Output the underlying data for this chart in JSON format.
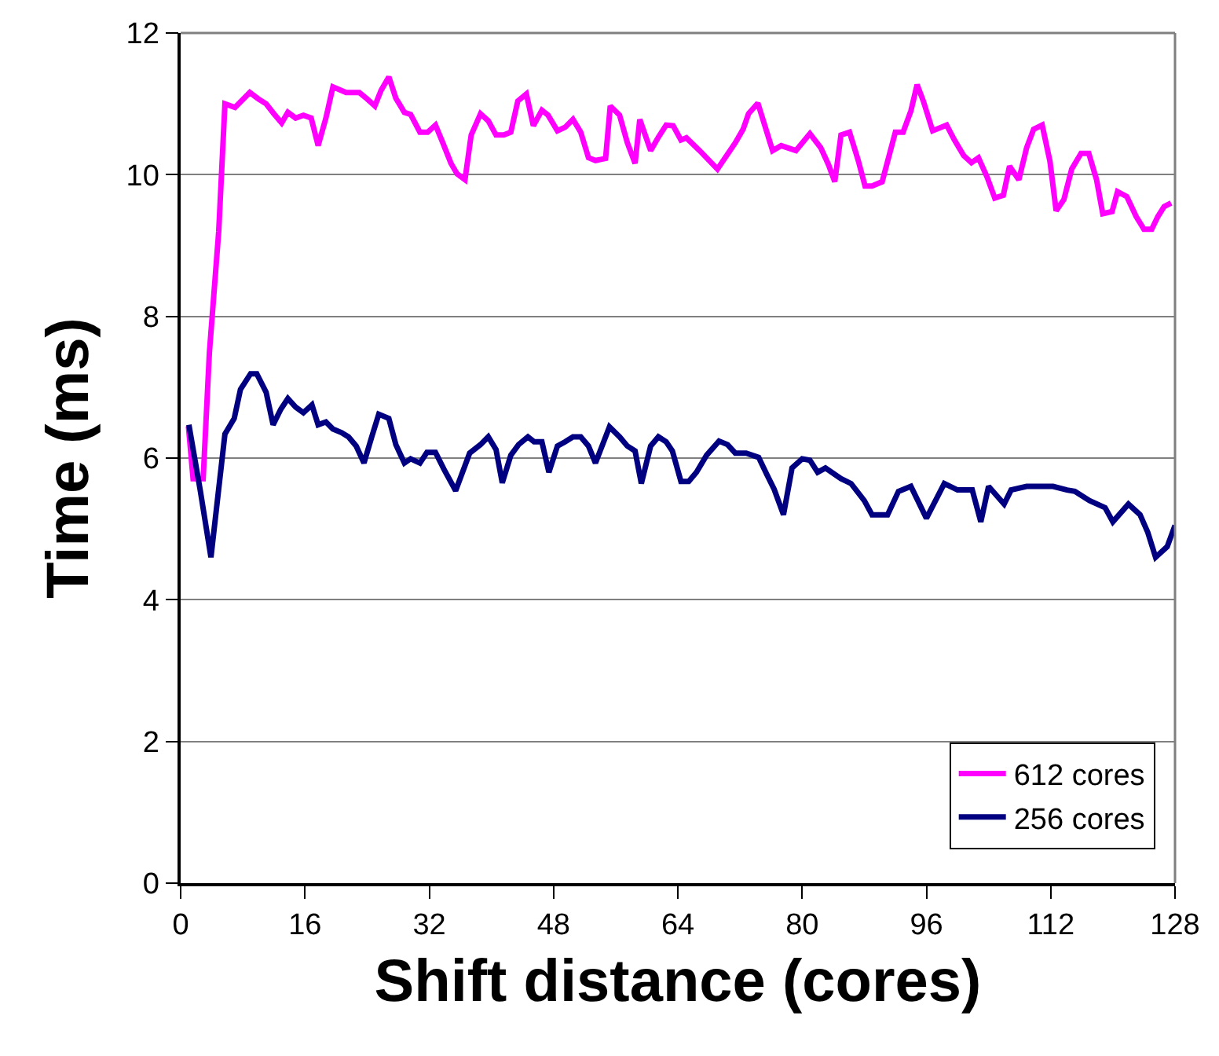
{
  "chart_data": {
    "type": "line",
    "xlabel": "Shift distance (cores)",
    "ylabel": "Time (ms)",
    "xlim": [
      0,
      128
    ],
    "xticks": [
      0,
      16,
      32,
      48,
      64,
      80,
      96,
      112,
      128
    ],
    "ylim": [
      0,
      12
    ],
    "yticks": [
      0,
      2,
      4,
      6,
      8,
      10,
      12
    ],
    "grid": "y",
    "legend": "bottom right",
    "marker": "none",
    "line_style": "solid",
    "series": [
      {
        "name": "612 cores",
        "color": "#ff00ff",
        "x": [
          1,
          1.6,
          2.9,
          3.7,
          4.9,
          5.7,
          7.0,
          8.9,
          10,
          11,
          12,
          13,
          13.8,
          14.8,
          15.8,
          16.8,
          17.7,
          18.7,
          19.6,
          21.3,
          23,
          24,
          25,
          25.8,
          26.8,
          27.7,
          28.8,
          29.6,
          30.8,
          31.8,
          32.8,
          33.6,
          34.8,
          35.6,
          36.6,
          37.4,
          38.6,
          39.6,
          40.6,
          41.6,
          42.5,
          43.4,
          44.5,
          45.4,
          46.5,
          47.3,
          48.5,
          49.5,
          50.5,
          51.5,
          52.5,
          53.4,
          54.7,
          55.3,
          56.5,
          57.5,
          58.5,
          59.1,
          60.5,
          61.5,
          62.5,
          63.4,
          64.4,
          65.1,
          66.8,
          69.1,
          71.4,
          72.4,
          73.1,
          74.3,
          76.2,
          77.3,
          79.2,
          81.0,
          82.4,
          83.4,
          84.2,
          85.0,
          86.1,
          87.2,
          88.1,
          89.0,
          90.3,
          92.0,
          93.0,
          94.0,
          94.8,
          95.6,
          96.8,
          98.6,
          99.6,
          100.8,
          101.8,
          102.7,
          103.8,
          104.8,
          105.9,
          106.7,
          107.9,
          108.9,
          109.8,
          110.9,
          111.9,
          112.7,
          113.7,
          114.7,
          115.9,
          116.9,
          117.9,
          118.7,
          119.9,
          120.6,
          121.8,
          123.0,
          124.0,
          125.0,
          125.8,
          126.6,
          127.5
        ],
        "values": [
          6.45,
          5.71,
          5.71,
          7.49,
          9.2,
          11.0,
          10.95,
          11.16,
          11.07,
          11.0,
          10.86,
          10.73,
          10.88,
          10.8,
          10.84,
          10.8,
          10.41,
          10.8,
          11.24,
          11.16,
          11.16,
          11.07,
          10.97,
          11.19,
          11.38,
          11.08,
          10.88,
          10.85,
          10.6,
          10.6,
          10.7,
          10.49,
          10.16,
          10.01,
          9.93,
          10.56,
          10.86,
          10.76,
          10.56,
          10.56,
          10.6,
          11.04,
          11.14,
          10.69,
          10.91,
          10.84,
          10.62,
          10.67,
          10.78,
          10.6,
          10.24,
          10.2,
          10.23,
          10.97,
          10.84,
          10.45,
          10.16,
          10.78,
          10.34,
          10.53,
          10.7,
          10.69,
          10.49,
          10.52,
          10.34,
          10.08,
          10.45,
          10.64,
          10.86,
          11.01,
          10.34,
          10.41,
          10.34,
          10.58,
          10.38,
          10.14,
          9.9,
          10.56,
          10.6,
          10.21,
          9.84,
          9.84,
          9.9,
          10.6,
          10.6,
          10.9,
          11.27,
          11.04,
          10.62,
          10.7,
          10.49,
          10.27,
          10.17,
          10.24,
          9.97,
          9.67,
          9.71,
          10.12,
          9.93,
          10.38,
          10.64,
          10.7,
          10.19,
          9.49,
          9.65,
          10.08,
          10.3,
          10.3,
          9.93,
          9.45,
          9.48,
          9.76,
          9.69,
          9.41,
          9.23,
          9.23,
          9.41,
          9.55,
          9.6
        ]
      },
      {
        "name": "256 cores",
        "color": "#000080",
        "x": [
          1.06,
          2.5,
          3.9,
          5.7,
          6.9,
          7.7,
          9.0,
          9.8,
          11.0,
          11.9,
          12.9,
          13.8,
          14.8,
          15.8,
          16.9,
          17.7,
          18.7,
          19.6,
          20.7,
          21.6,
          22.6,
          23.6,
          24.6,
          25.5,
          26.8,
          27.7,
          28.8,
          29.6,
          30.8,
          31.7,
          32.8,
          33.9,
          35.4,
          37.2,
          38.6,
          39.6,
          40.6,
          41.4,
          42.5,
          43.5,
          44.7,
          45.5,
          46.5,
          47.4,
          48.5,
          49.5,
          50.5,
          51.5,
          52.5,
          53.4,
          55.2,
          56.5,
          57.5,
          58.5,
          59.3,
          60.5,
          61.5,
          62.5,
          63.3,
          64.4,
          65.4,
          66.4,
          67.7,
          69.3,
          70.4,
          71.4,
          72.8,
          74.4,
          75.4,
          76.4,
          77.6,
          78.7,
          80,
          81,
          82,
          83,
          85,
          86.3,
          88,
          89,
          91,
          92.4,
          94,
          96,
          98.3,
          100,
          101.9,
          103,
          104,
          106,
          106.9,
          108.9,
          110.9,
          112.3,
          114.1,
          115.1,
          117,
          119,
          120,
          122,
          123.5,
          124.5,
          125.5,
          127,
          128
        ],
        "values": [
          6.47,
          5.56,
          4.6,
          6.34,
          6.56,
          6.97,
          7.19,
          7.19,
          6.93,
          6.47,
          6.69,
          6.84,
          6.72,
          6.64,
          6.75,
          6.47,
          6.51,
          6.41,
          6.36,
          6.3,
          6.17,
          5.93,
          6.3,
          6.62,
          6.56,
          6.19,
          5.93,
          5.99,
          5.93,
          6.08,
          6.08,
          5.84,
          5.54,
          6.07,
          6.19,
          6.3,
          6.12,
          5.65,
          6.04,
          6.19,
          6.3,
          6.23,
          6.23,
          5.8,
          6.17,
          6.23,
          6.3,
          6.3,
          6.17,
          5.93,
          6.44,
          6.3,
          6.17,
          6.1,
          5.64,
          6.17,
          6.3,
          6.23,
          6.1,
          5.67,
          5.67,
          5.8,
          6.04,
          6.24,
          6.19,
          6.07,
          6.07,
          6.01,
          5.78,
          5.56,
          5.2,
          5.86,
          5.99,
          5.97,
          5.8,
          5.86,
          5.71,
          5.64,
          5.4,
          5.2,
          5.2,
          5.53,
          5.6,
          5.15,
          5.64,
          5.55,
          5.55,
          5.1,
          5.6,
          5.35,
          5.55,
          5.6,
          5.6,
          5.6,
          5.55,
          5.53,
          5.4,
          5.3,
          5.1,
          5.35,
          5.2,
          4.95,
          4.6,
          4.75,
          5.05
        ]
      }
    ]
  }
}
